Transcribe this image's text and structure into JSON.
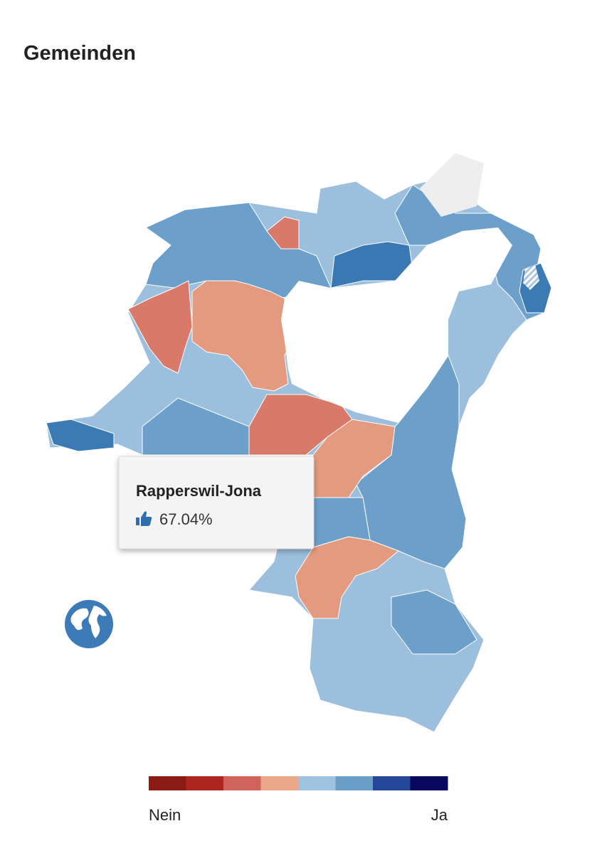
{
  "header": {
    "title": "Gemeinden"
  },
  "tooltip": {
    "name": "Rapperswil-Jona",
    "value": "67.04%"
  },
  "legend": {
    "low_label": "Nein",
    "high_label": "Ja",
    "colors": [
      "#8b1a12",
      "#ad2620",
      "#d0645a",
      "#eba889",
      "#9fc3de",
      "#6a9fca",
      "#24479a",
      "#07085e"
    ]
  }
}
